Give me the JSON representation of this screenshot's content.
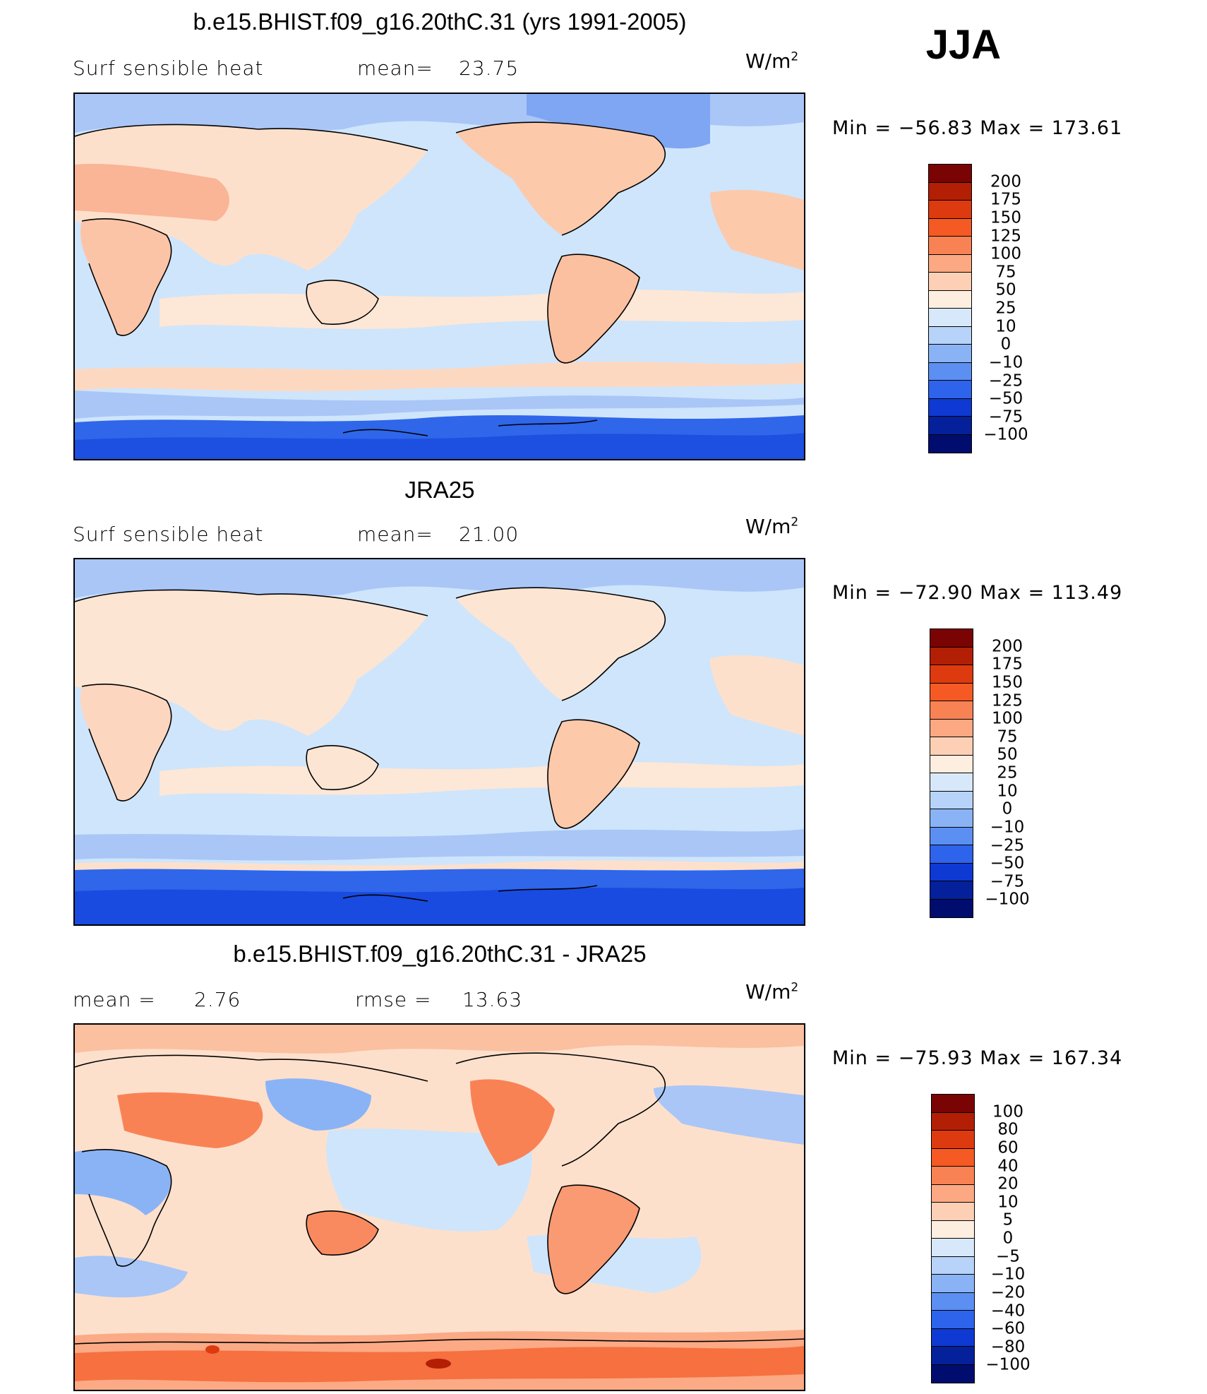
{
  "season": "JJA",
  "units_base": "W/m",
  "units_exp": "2",
  "panels": [
    {
      "title": "b.e15.BHIST.f09_g16.20thC.31 (yrs 1991-2005)",
      "left_label": "Surf  sensible  heat",
      "stat1_label": "mean=",
      "stat1_value": "23.75",
      "stat2_label": "",
      "stat2_value": "",
      "minmax": "Min  =  −56.83  Max  =  173.61",
      "colorbar": {
        "labels": [
          "200",
          "175",
          "150",
          "125",
          "100",
          "75",
          "50",
          "25",
          "10",
          "0",
          "−10",
          "−25",
          "−50",
          "−75",
          "−100"
        ],
        "colors": [
          "#7a0403",
          "#b31f05",
          "#de3a10",
          "#f65a24",
          "#f98255",
          "#fca983",
          "#fdd0b6",
          "#fdeee0",
          "#d7e8fb",
          "#b8d3f9",
          "#8ab3f6",
          "#5c8ff2",
          "#2e63ec",
          "#0f39d3",
          "#04209a",
          "#000d6e"
        ]
      }
    },
    {
      "title": "JRA25",
      "left_label": "Surf  sensible  heat",
      "stat1_label": "mean=",
      "stat1_value": "21.00",
      "stat2_label": "",
      "stat2_value": "",
      "minmax": "Min  =  −72.90  Max  =  113.49",
      "colorbar": {
        "labels": [
          "200",
          "175",
          "150",
          "125",
          "100",
          "75",
          "50",
          "25",
          "10",
          "0",
          "−10",
          "−25",
          "−50",
          "−75",
          "−100"
        ],
        "colors": [
          "#7a0403",
          "#b31f05",
          "#de3a10",
          "#f65a24",
          "#f98255",
          "#fca983",
          "#fdd0b6",
          "#fdeee0",
          "#d7e8fb",
          "#b8d3f9",
          "#8ab3f6",
          "#5c8ff2",
          "#2e63ec",
          "#0f39d3",
          "#04209a",
          "#000d6e"
        ]
      }
    },
    {
      "title": "b.e15.BHIST.f09_g16.20thC.31 - JRA25",
      "left_label": "mean  =",
      "stat1_label": "2.76",
      "stat1_value": "",
      "stat2_label": "rmse  =",
      "stat2_value": "13.63",
      "minmax": "Min  =  −75.93  Max  =  167.34",
      "colorbar": {
        "labels": [
          "100",
          "80",
          "60",
          "40",
          "20",
          "10",
          "5",
          "0",
          "−5",
          "−10",
          "−20",
          "−40",
          "−60",
          "−80",
          "−100"
        ],
        "colors": [
          "#7a0403",
          "#b31f05",
          "#de3a10",
          "#f65a24",
          "#f98255",
          "#fca983",
          "#fdd0b6",
          "#fdeee0",
          "#d7e8fb",
          "#b8d3f9",
          "#8ab3f6",
          "#5c8ff2",
          "#2e63ec",
          "#0f39d3",
          "#04209a",
          "#000d6e"
        ]
      }
    }
  ]
}
